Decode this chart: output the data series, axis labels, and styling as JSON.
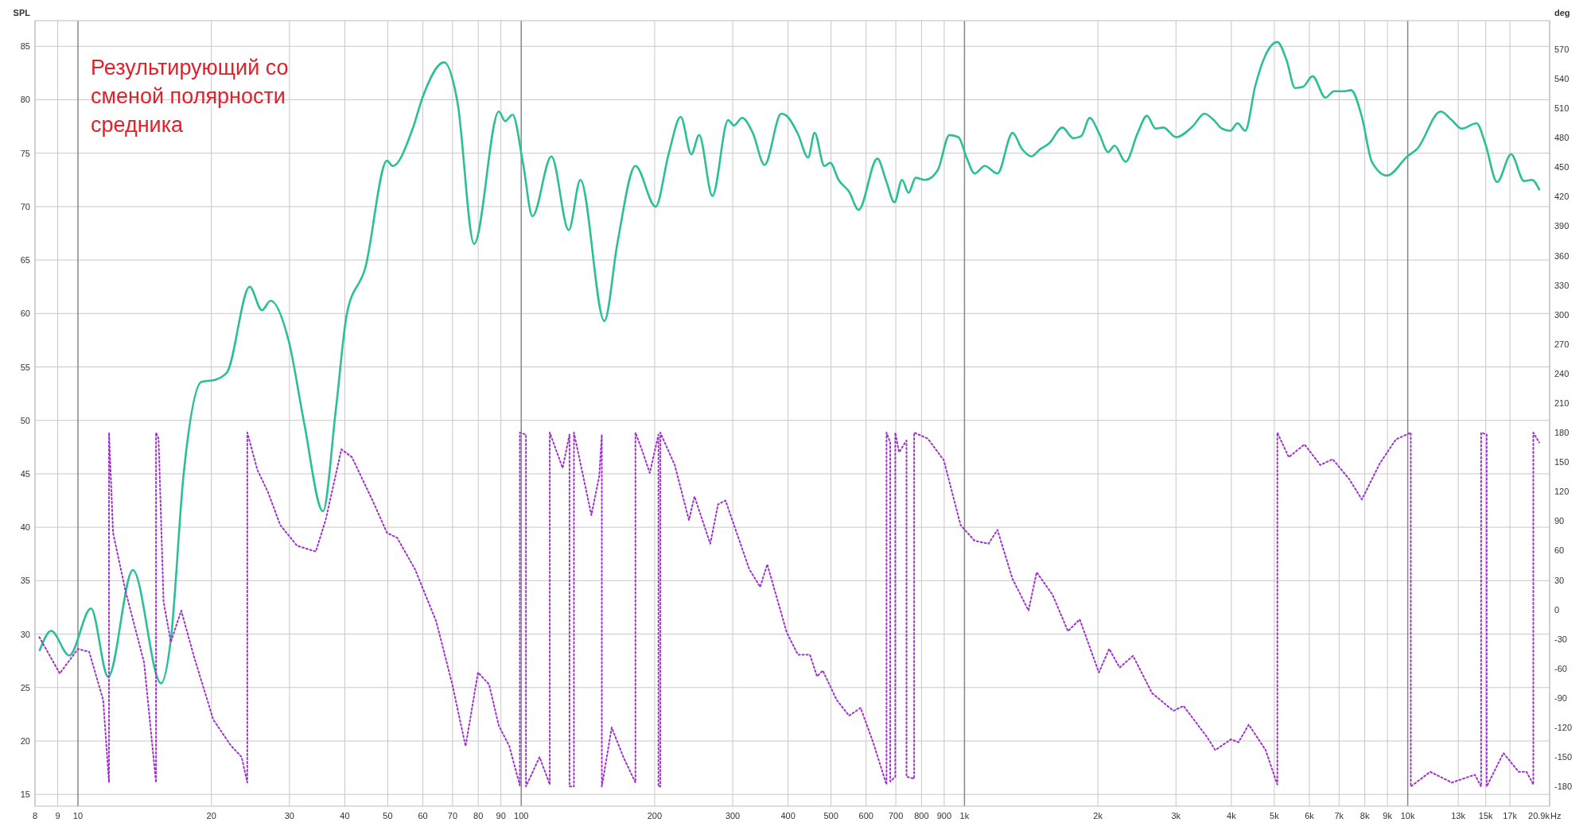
{
  "chart_data": {
    "type": "line",
    "ylabel": "SPL",
    "y2label": "deg",
    "log": "x",
    "grid": true,
    "annotations": [
      "Результирующий со сменой полярности средника"
    ],
    "xlim": [
      8,
      20900
    ],
    "ylim": [
      13.9,
      87.4
    ],
    "y2lim": [
      -200,
      599
    ],
    "xticks": [
      8,
      9,
      10,
      20,
      30,
      40,
      50,
      60,
      70,
      80,
      90,
      100,
      200,
      300,
      400,
      500,
      600,
      700,
      800,
      900,
      {
        "value": 1000,
        "label": "1k"
      },
      {
        "value": 2000,
        "label": "2k"
      },
      {
        "value": 3000,
        "label": "3k"
      },
      {
        "value": 4000,
        "label": "4k"
      },
      {
        "value": 5000,
        "label": "5k"
      },
      {
        "value": 6000,
        "label": "6k"
      },
      {
        "value": 7000,
        "label": "7k"
      },
      {
        "value": 8000,
        "label": "8k"
      },
      {
        "value": 9000,
        "label": "9k"
      },
      {
        "value": 10000,
        "label": "10k"
      },
      {
        "value": 13000,
        "label": "13k"
      },
      {
        "value": 15000,
        "label": "15k"
      },
      {
        "value": 17000,
        "label": "17k"
      },
      {
        "value": 20900,
        "label": "20.9k"
      }
    ],
    "xlabel": "Hz",
    "yticks": [
      15,
      20,
      25,
      30,
      35,
      40,
      45,
      50,
      55,
      60,
      65,
      70,
      75,
      80,
      85
    ],
    "y2ticks": [
      -180,
      -150,
      -120,
      -90,
      -60,
      -30,
      0,
      30,
      60,
      90,
      120,
      150,
      180,
      210,
      240,
      270,
      300,
      330,
      360,
      390,
      420,
      450,
      480,
      510,
      540,
      570
    ],
    "series": [
      {
        "color": "#2bbf98",
        "line_style": "solid",
        "x": [
          8.2,
          8.7,
          9.56,
          10.7,
          11.7,
          13.3,
          15.4,
          16.2,
          17.3,
          19,
          20.4,
          21.7,
          24.4,
          26,
          27.2,
          29.9,
          32.4,
          35.7,
          38.2,
          40.4,
          44.5,
          49.8,
          51.3,
          56.9,
          60,
          67,
          71.8,
          78.3,
          89,
          92,
          95.6,
          101,
          106,
          117,
          128,
          136,
          154,
          165,
          181,
          201,
          215,
          229,
          242,
          252,
          270,
          293,
          302,
          315,
          333,
          354,
          386,
          397,
          421,
          444,
          459,
          483,
          498,
          520,
          549,
          577,
          636,
          667,
          695,
          723,
          748,
          776,
          815,
          870,
          925,
          969,
          1013,
          1054,
          1111,
          1187,
          1284,
          1348,
          1415,
          1484,
          1551,
          1663,
          1761,
          1834,
          1917,
          2010,
          2110,
          2180,
          2310,
          2460,
          2580,
          2700,
          2810,
          3000,
          3270,
          3480,
          3650,
          3810,
          3980,
          4130,
          4300,
          4530,
          4780,
          5080,
          5330,
          5570,
          5800,
          6100,
          6520,
          6820,
          7210,
          7450,
          7880,
          8300,
          8980,
          9980,
          10500,
          11870,
          12570,
          13240,
          14300,
          14960,
          15910,
          17110,
          18300,
          19070,
          19800
        ],
        "values": [
          28.5,
          30.3,
          28,
          32.4,
          26,
          36,
          25.4,
          29.5,
          44.8,
          53.6,
          53.8,
          54.5,
          62.5,
          60.3,
          61.2,
          57.4,
          49.7,
          41.5,
          51.1,
          59.9,
          64.3,
          74.3,
          73.8,
          77.3,
          80.3,
          83.5,
          79.8,
          66.5,
          78.9,
          78,
          78.6,
          74,
          69.1,
          74.7,
          67.8,
          72.5,
          59.3,
          66.7,
          73.8,
          70,
          74.9,
          78.4,
          74.9,
          76.7,
          71,
          78.1,
          77.6,
          78.3,
          76.9,
          73.9,
          78.7,
          78.5,
          76.8,
          74.6,
          76.9,
          73.8,
          74.1,
          72.5,
          71.4,
          69.7,
          74.5,
          72.3,
          70.4,
          72.5,
          71.3,
          72.7,
          72.5,
          73.4,
          76.7,
          76.5,
          74.5,
          73.1,
          73.8,
          73.1,
          76.9,
          75.4,
          74.7,
          75.4,
          75.9,
          77.4,
          76.4,
          76.6,
          78.3,
          76.9,
          75.1,
          75.7,
          74.2,
          76.9,
          78.5,
          77.3,
          77.4,
          76.5,
          77.5,
          78.7,
          78.1,
          77.3,
          77.1,
          77.8,
          77.1,
          81.3,
          84.2,
          85.4,
          83.7,
          81.1,
          81.2,
          82.2,
          80.2,
          80.8,
          80.8,
          80.9,
          78.4,
          74.2,
          72.9,
          74.7,
          75.4,
          78.9,
          78.1,
          77.3,
          77.8,
          75.9,
          72.3,
          74.9,
          72.4,
          72.5,
          71.6
        ]
      },
      {
        "color": "#a030d0",
        "line_style": "dotted",
        "axis": "y2",
        "x": [
          8.18,
          9.1,
          10,
          10.6,
          11.4,
          11.75,
          11.75,
          12,
          12.8,
          14.1,
          15,
          15,
          15.2,
          15.6,
          16.2,
          17.1,
          18.3,
          20.2,
          22.1,
          23.4,
          24.1,
          24.1,
          25.4,
          26.8,
          28.6,
          31.2,
          34.4,
          36.2,
          39.3,
          41.5,
          46.3,
          49.8,
          52.5,
          57.6,
          64.3,
          69.9,
          74.9,
          79.9,
          84.6,
          89,
          94,
          99.3,
          99.3,
          102.5,
          102.5,
          110,
          116,
          116,
          124,
          128.5,
          128.5,
          131.5,
          131.5,
          144,
          150,
          152,
          152,
          160,
          170,
          181,
          181,
          187,
          195,
          204,
          204,
          206,
          206,
          222,
          239,
          246,
          267,
          278,
          289,
          327,
          346,
          359,
          397,
          421,
          448,
          465,
          479,
          515,
          549,
          583,
          621,
          667,
          667,
          680,
          680,
          698,
          698,
          712,
          740,
          740,
          770,
          770,
          826,
          898,
          980,
          1054,
          1133,
          1187,
          1284,
          1395,
          1455,
          1580,
          1712,
          1820,
          2010,
          2120,
          2240,
          2400,
          2650,
          2960,
          3120,
          3530,
          3680,
          3990,
          4150,
          4380,
          4780,
          5080,
          5080,
          5390,
          5850,
          6350,
          6770,
          7370,
          7880,
          8660,
          9400,
          10160,
          10160,
          11240,
          12570,
          14170,
          14640,
          14640,
          15070,
          15070,
          16440,
          17790,
          18530,
          19200,
          19200,
          19800
        ],
        "values": [
          -28,
          -65,
          -40,
          -43,
          -92,
          -176,
          180,
          78,
          19,
          -54,
          -176,
          180,
          174,
          8,
          -33,
          -1,
          -49,
          -112,
          -138,
          -150,
          -176,
          180,
          142,
          120,
          86,
          65,
          59,
          91,
          163,
          155,
          110,
          78,
          73,
          41,
          -12,
          -76,
          -139,
          -64,
          -76,
          -118,
          -139,
          -179,
          180,
          178,
          -180,
          -150,
          -178,
          180,
          144,
          178,
          -180,
          -180,
          180,
          96,
          136,
          178,
          -180,
          -120,
          -150,
          -176,
          180,
          163,
          139,
          178,
          -180,
          -180,
          180,
          147,
          91,
          115,
          67,
          107,
          111,
          41,
          23,
          46,
          -23,
          -46,
          -46,
          -68,
          -62,
          -92,
          -108,
          -100,
          -134,
          -178,
          180,
          170,
          -175,
          -170,
          180,
          160,
          172,
          -170,
          -172,
          180,
          174,
          152,
          86,
          70,
          67,
          81,
          31,
          -1,
          38,
          15,
          -22,
          -10,
          -64,
          -40,
          -59,
          -47,
          -85,
          -103,
          -98,
          -130,
          -143,
          -132,
          -135,
          -117,
          -143,
          -178,
          180,
          155,
          168,
          147,
          153,
          133,
          112,
          149,
          173,
          180,
          -180,
          -165,
          -176,
          -168,
          -180,
          180,
          178,
          -180,
          -146,
          -165,
          -165,
          -178,
          180,
          170
        ]
      }
    ]
  }
}
